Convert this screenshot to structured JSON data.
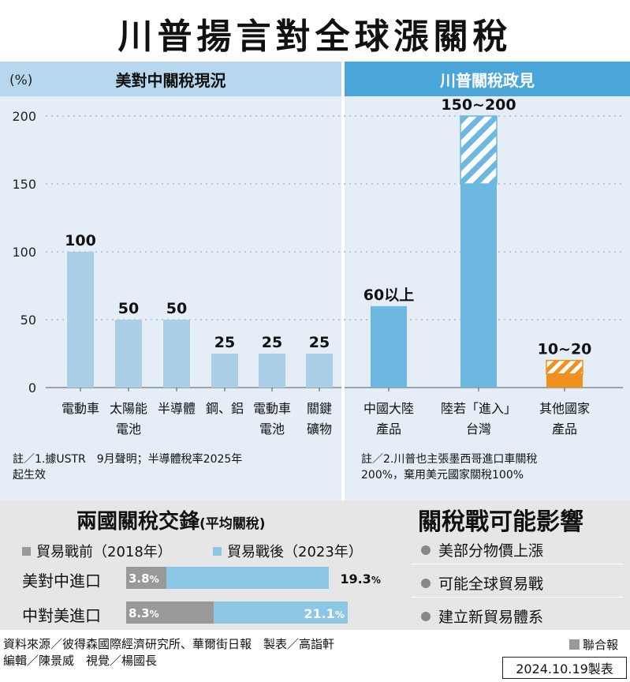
{
  "title": "川普揚言對全球漲關稅",
  "left_panel_title": "美對中關稅現況",
  "right_panel_title": "川普關稅政見",
  "y_unit": "(%)",
  "chart_data": {
    "type": "bar",
    "ylim": [
      0,
      200
    ],
    "yticks": [
      0,
      50,
      100,
      150,
      200
    ],
    "grid": true,
    "categories": [
      [
        "電動車"
      ],
      [
        "太陽能",
        "電池"
      ],
      [
        "半導體"
      ],
      [
        "鋼、鋁"
      ],
      [
        "電動車",
        "電池"
      ],
      [
        "關鍵",
        "礦物"
      ],
      [
        "中國大陸",
        "產品"
      ],
      [
        "陸若「進入」",
        "台灣"
      ],
      [
        "其他國家",
        "產品"
      ]
    ],
    "values": [
      100,
      50,
      50,
      25,
      25,
      25,
      60,
      150,
      10
    ],
    "value_ranges": [
      null,
      null,
      null,
      null,
      null,
      null,
      null,
      [
        150,
        200
      ],
      [
        10,
        20
      ]
    ],
    "value_labels": [
      "100",
      "50",
      "50",
      "25",
      "25",
      "25",
      "60以上",
      "150~200",
      "10~20"
    ],
    "colors": [
      "#a9cee6",
      "#a9cee6",
      "#a9cee6",
      "#a9cee6",
      "#a9cee6",
      "#a9cee6",
      "#6db8e1",
      "#6db8e1",
      "#f0901e"
    ]
  },
  "note_left": [
    "註／1.據USTR　9月聲明；半導體稅率2025年",
    "起生效"
  ],
  "note_right": [
    "註／2.川普也主張墨西哥進口車關稅",
    "200%，棄用美元國家關稅100%"
  ],
  "trade": {
    "title": "兩國關稅交鋒",
    "subtitle": "(平均關稅)",
    "legend_before": "貿易戰前（2018年）",
    "legend_after": "貿易戰後（2023年）",
    "color_before": "#999999",
    "color_after": "#8cc8e6",
    "rows": [
      {
        "label": "美對中進口",
        "before": 3.8,
        "after": 19.3,
        "before_label": "3.8",
        "after_label": "19.3"
      },
      {
        "label": "中對美進口",
        "before": 8.3,
        "after": 21.1,
        "before_label": "8.3",
        "after_label": "21.1"
      }
    ],
    "percent_sign": "%"
  },
  "impact": {
    "title": "關稅戰可能影響",
    "items": [
      "美部分物價上漲",
      "可能全球貿易戰",
      "建立新貿易體系"
    ]
  },
  "source_lines": [
    "資料來源／彼得森國際經濟研究所、華爾街日報　製表／高詣軒",
    "編輯／陳景威　視覺／楊國長"
  ],
  "publisher": "聯合報",
  "date": "2024.10.19製表"
}
